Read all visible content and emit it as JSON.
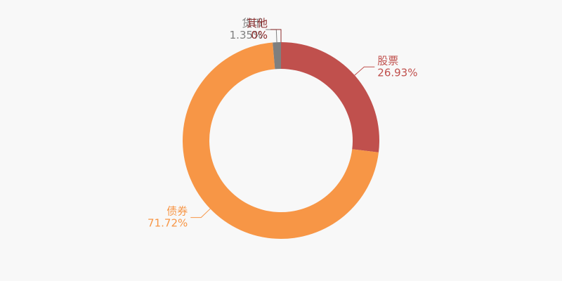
{
  "chart_data": {
    "type": "donut",
    "categories": [
      "股票",
      "债券",
      "货币",
      "其他"
    ],
    "values": [
      26.93,
      71.72,
      1.35,
      0
    ],
    "value_labels": [
      "26.93%",
      "71.72%",
      "1.35%",
      "0%"
    ],
    "colors": [
      "#c0504d",
      "#f79646",
      "#7f7f7f",
      "#8b2c2c"
    ]
  }
}
